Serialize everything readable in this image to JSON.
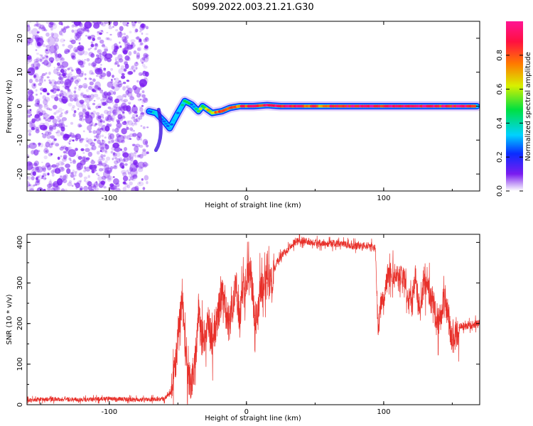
{
  "figure_title": "S099.2022.003.21.21.G30",
  "colors": {
    "snr_line": "#e8302a",
    "scatter_noise": "#7a1cf0",
    "colormap": [
      "#ffffff",
      "#7a1cf0",
      "#0a2cff",
      "#00d2ff",
      "#00e040",
      "#d8f000",
      "#ff7a00",
      "#ff1040",
      "#ff1493"
    ]
  },
  "colorbar": {
    "label": "Normalized spectral amplitude",
    "range": [
      0,
      1
    ],
    "ticks": [
      "0.0",
      "0.2",
      "0.4",
      "0.6",
      "0.8"
    ]
  },
  "chart_data": [
    {
      "type": "heatmap",
      "title": "",
      "xlabel": "Height of straight line (km)",
      "ylabel": "Frequency (Hz)",
      "xlim": [
        -160,
        170
      ],
      "ylim": [
        -25,
        25
      ],
      "xticks": [
        "-100",
        "0",
        "100"
      ],
      "yticks": [
        "-20",
        "-10",
        "0",
        "10",
        "20"
      ],
      "colorscale": "rainbow, normalized spectral amplitude 0–1",
      "noise_region_x": [
        -160,
        -72
      ],
      "ridge": [
        [
          -71,
          -1.5,
          0.35
        ],
        [
          -66,
          -2.0,
          0.25
        ],
        [
          -60,
          -4.5,
          0.2
        ],
        [
          -56,
          -6.5,
          0.2
        ],
        [
          -50,
          -2.0,
          0.25
        ],
        [
          -45,
          1.5,
          0.55
        ],
        [
          -40,
          0.5,
          0.3
        ],
        [
          -35,
          -1.5,
          0.45
        ],
        [
          -32,
          0.0,
          0.6
        ],
        [
          -25,
          -2.0,
          0.7
        ],
        [
          -18,
          -1.5,
          0.75
        ],
        [
          -12,
          -0.5,
          0.8
        ],
        [
          -5,
          0.0,
          0.8
        ],
        [
          5,
          0.0,
          0.85
        ],
        [
          15,
          0.3,
          0.9
        ],
        [
          25,
          0.0,
          0.95
        ],
        [
          40,
          0.0,
          0.85
        ],
        [
          55,
          0.0,
          0.8
        ],
        [
          65,
          0.0,
          0.9
        ],
        [
          80,
          0.0,
          0.95
        ],
        [
          100,
          0.0,
          0.9
        ],
        [
          120,
          0.0,
          0.95
        ],
        [
          140,
          0.0,
          0.9
        ],
        [
          160,
          0.0,
          0.95
        ],
        [
          168,
          0.0,
          0.9
        ]
      ]
    },
    {
      "type": "line",
      "title": "",
      "xlabel": "Height of straight line (km)",
      "ylabel": "SNR (10 * v/v)",
      "xlim": [
        -160,
        170
      ],
      "ylim": [
        0,
        420
      ],
      "xticks": [
        "-100",
        "0",
        "100"
      ],
      "yticks": [
        "0",
        "100",
        "200",
        "300",
        "400"
      ],
      "series": [
        {
          "x": [
            -160,
            -140,
            -120,
            -100,
            -80,
            -60,
            -55,
            -52,
            -49,
            -47,
            -45,
            -43,
            -42,
            -40,
            -37,
            -35,
            -33,
            -30,
            -28,
            -25,
            -22,
            -18,
            -15,
            -12,
            -8,
            -5,
            -3,
            0,
            3,
            6,
            8,
            10,
            12,
            15,
            18,
            22,
            26,
            30,
            35,
            40,
            50,
            60,
            70,
            80,
            90,
            94,
            95,
            96,
            98,
            100,
            103,
            110,
            115,
            118,
            120,
            123,
            126,
            130,
            135,
            140,
            145,
            150,
            155,
            160,
            170
          ],
          "y": [
            12,
            14,
            12,
            15,
            12,
            14,
            30,
            90,
            200,
            280,
            140,
            60,
            70,
            50,
            120,
            240,
            160,
            180,
            210,
            150,
            200,
            270,
            230,
            200,
            300,
            210,
            270,
            300,
            330,
            220,
            210,
            290,
            280,
            300,
            310,
            350,
            370,
            385,
            400,
            405,
            400,
            398,
            395,
            390,
            392,
            385,
            270,
            180,
            255,
            260,
            325,
            320,
            315,
            260,
            260,
            300,
            250,
            310,
            260,
            200,
            260,
            160,
            190,
            195,
            200
          ]
        }
      ]
    }
  ]
}
